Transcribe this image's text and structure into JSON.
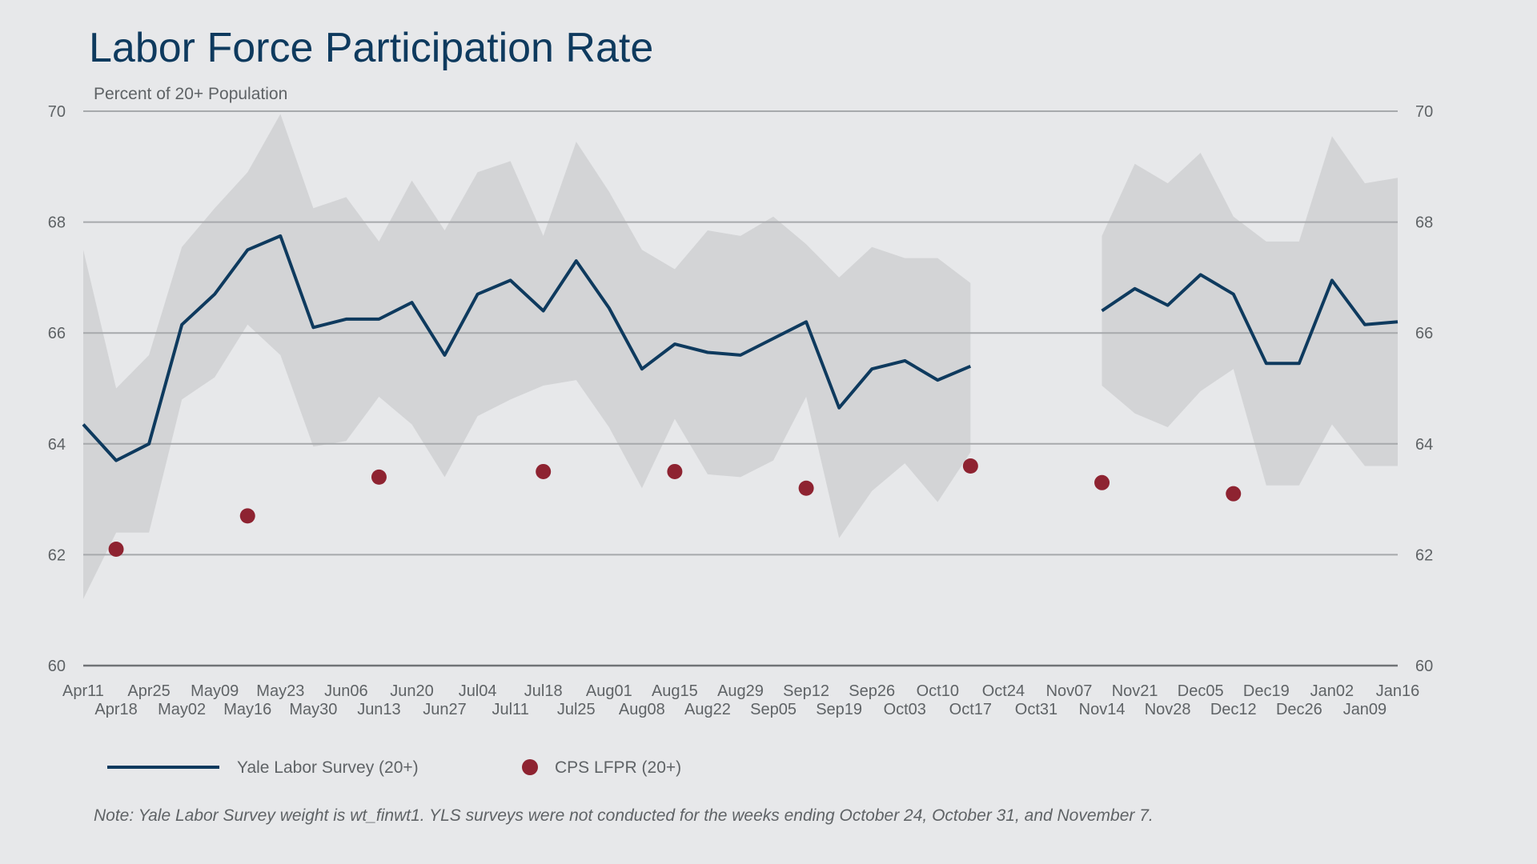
{
  "chart_data": {
    "type": "line",
    "title": "Labor Force Participation Rate",
    "subtitle": "Percent of 20+ Population",
    "note": "Note: Yale Labor Survey weight is wt_finwt1. YLS surveys were not conducted for the weeks ending October 24, October 31, and November 7.",
    "ylim": [
      60,
      70
    ],
    "y_ticks": [
      60,
      62,
      64,
      66,
      68,
      70
    ],
    "y_axis_both_sides": true,
    "grid": true,
    "legend_position": "bottom",
    "x": [
      "Apr11",
      "Apr18",
      "Apr25",
      "May02",
      "May09",
      "May16",
      "May23",
      "May30",
      "Jun06",
      "Jun13",
      "Jun20",
      "Jun27",
      "Jul04",
      "Jul11",
      "Jul18",
      "Jul25",
      "Aug01",
      "Aug08",
      "Aug15",
      "Aug22",
      "Aug29",
      "Sep05",
      "Sep12",
      "Sep19",
      "Sep26",
      "Oct03",
      "Oct10",
      "Oct17",
      "Oct24",
      "Oct31",
      "Nov07",
      "Nov14",
      "Nov21",
      "Nov28",
      "Dec05",
      "Dec12",
      "Dec19",
      "Dec26",
      "Jan02",
      "Jan09",
      "Jan16"
    ],
    "series": [
      {
        "name": "Yale Labor Survey (20+)",
        "kind": "line",
        "color": "#0e3a5e",
        "values": [
          64.35,
          63.7,
          64.0,
          66.15,
          66.7,
          67.5,
          67.75,
          66.1,
          66.25,
          66.25,
          66.55,
          65.6,
          66.7,
          66.95,
          66.4,
          67.3,
          66.45,
          65.35,
          65.8,
          65.65,
          65.6,
          65.9,
          66.2,
          64.65,
          65.35,
          65.5,
          65.15,
          65.4,
          null,
          null,
          null,
          66.4,
          66.8,
          66.5,
          67.05,
          66.7,
          65.45,
          65.45,
          66.95,
          66.15,
          66.2
        ]
      },
      {
        "name": "CI upper",
        "kind": "band-upper",
        "color": "#d3d4d6",
        "values": [
          67.5,
          65.0,
          65.6,
          67.55,
          68.25,
          68.9,
          69.95,
          68.25,
          68.45,
          67.65,
          68.75,
          67.85,
          68.9,
          69.1,
          67.75,
          69.45,
          68.55,
          67.5,
          67.15,
          67.85,
          67.75,
          68.1,
          67.6,
          67.0,
          67.55,
          67.35,
          67.35,
          66.9,
          null,
          null,
          null,
          67.75,
          69.05,
          68.7,
          69.25,
          68.1,
          67.65,
          67.65,
          69.55,
          68.7,
          68.8
        ]
      },
      {
        "name": "CI lower",
        "kind": "band-lower",
        "color": "#d3d4d6",
        "values": [
          61.2,
          62.4,
          62.4,
          64.8,
          65.2,
          66.15,
          65.6,
          63.95,
          64.05,
          64.85,
          64.35,
          63.4,
          64.5,
          64.8,
          65.05,
          65.15,
          64.3,
          63.2,
          64.45,
          63.45,
          63.4,
          63.7,
          64.85,
          62.3,
          63.15,
          63.65,
          62.95,
          63.85,
          null,
          null,
          null,
          65.05,
          64.55,
          64.3,
          64.95,
          65.35,
          63.25,
          63.25,
          64.35,
          63.6,
          63.6
        ]
      },
      {
        "name": "CPS LFPR (20+)",
        "kind": "points",
        "color": "#8e2331",
        "points": [
          {
            "x": "Apr18",
            "y": 62.1
          },
          {
            "x": "May16",
            "y": 62.7
          },
          {
            "x": "Jun13",
            "y": 63.4
          },
          {
            "x": "Jul18",
            "y": 63.5
          },
          {
            "x": "Aug15",
            "y": 63.5
          },
          {
            "x": "Sep12",
            "y": 63.2
          },
          {
            "x": "Oct17",
            "y": 63.6
          },
          {
            "x": "Nov14",
            "y": 63.3
          },
          {
            "x": "Dec12",
            "y": 63.1
          }
        ]
      }
    ],
    "legend": [
      {
        "label": "Yale Labor Survey (20+)",
        "symbol": "line",
        "color": "#0e3a5e"
      },
      {
        "label": "CPS LFPR (20+)",
        "symbol": "dot",
        "color": "#8e2331"
      }
    ]
  }
}
